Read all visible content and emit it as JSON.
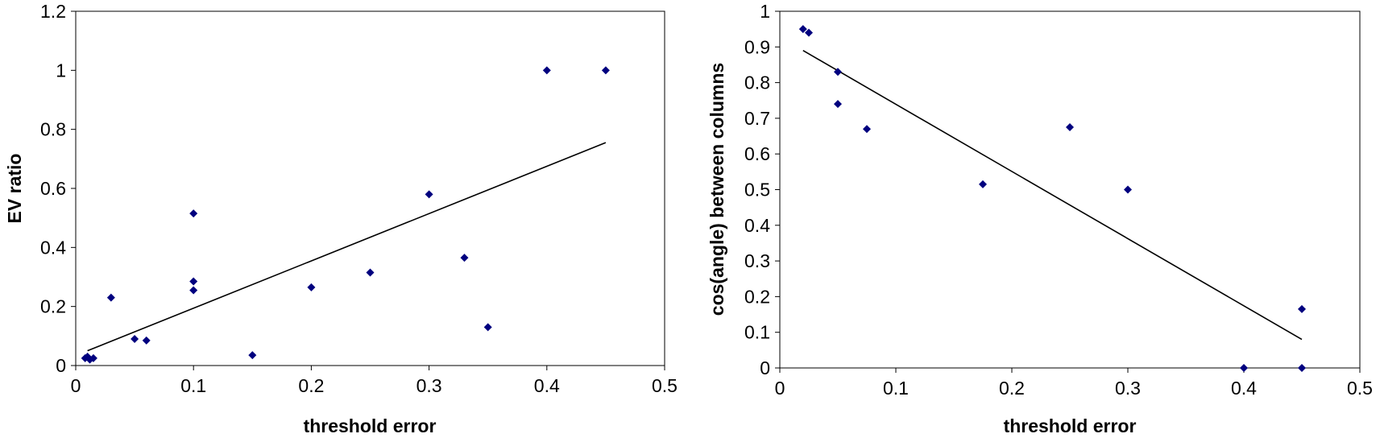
{
  "chart_data": [
    {
      "type": "scatter",
      "xlabel": "threshold error",
      "ylabel": "EV ratio",
      "xlim": [
        0,
        0.5
      ],
      "ylim": [
        0,
        1.2
      ],
      "xticks": [
        "0",
        "0.1",
        "0.2",
        "0.3",
        "0.4",
        "0.5"
      ],
      "yticks": [
        "0",
        "0.2",
        "0.4",
        "0.6",
        "0.8",
        "1",
        "1.2"
      ],
      "grid": false,
      "marker_color": "#00007f",
      "points": [
        {
          "x": 0.008,
          "y": 0.025
        },
        {
          "x": 0.01,
          "y": 0.03
        },
        {
          "x": 0.012,
          "y": 0.02
        },
        {
          "x": 0.015,
          "y": 0.025
        },
        {
          "x": 0.03,
          "y": 0.23
        },
        {
          "x": 0.05,
          "y": 0.09
        },
        {
          "x": 0.06,
          "y": 0.085
        },
        {
          "x": 0.1,
          "y": 0.515
        },
        {
          "x": 0.1,
          "y": 0.285
        },
        {
          "x": 0.1,
          "y": 0.255
        },
        {
          "x": 0.15,
          "y": 0.035
        },
        {
          "x": 0.2,
          "y": 0.265
        },
        {
          "x": 0.25,
          "y": 0.315
        },
        {
          "x": 0.3,
          "y": 0.58
        },
        {
          "x": 0.33,
          "y": 0.365
        },
        {
          "x": 0.35,
          "y": 0.13
        },
        {
          "x": 0.4,
          "y": 1.0
        },
        {
          "x": 0.45,
          "y": 1.0
        }
      ],
      "trendline": {
        "x": [
          0.01,
          0.45
        ],
        "y": [
          0.05,
          0.755
        ]
      }
    },
    {
      "type": "scatter",
      "xlabel": "threshold error",
      "ylabel": "cos(angle) between columns",
      "xlim": [
        0,
        0.5
      ],
      "ylim": [
        0,
        1
      ],
      "xticks": [
        "0",
        "0.1",
        "0.2",
        "0.3",
        "0.4",
        "0.5"
      ],
      "yticks": [
        "0",
        "0.1",
        "0.2",
        "0.3",
        "0.4",
        "0.5",
        "0.6",
        "0.7",
        "0.8",
        "0.9",
        "1"
      ],
      "grid": false,
      "marker_color": "#00007f",
      "points": [
        {
          "x": 0.02,
          "y": 0.95
        },
        {
          "x": 0.025,
          "y": 0.94
        },
        {
          "x": 0.05,
          "y": 0.83
        },
        {
          "x": 0.05,
          "y": 0.74
        },
        {
          "x": 0.075,
          "y": 0.67
        },
        {
          "x": 0.175,
          "y": 0.515
        },
        {
          "x": 0.25,
          "y": 0.675
        },
        {
          "x": 0.3,
          "y": 0.5
        },
        {
          "x": 0.4,
          "y": 0.0
        },
        {
          "x": 0.45,
          "y": 0.165
        },
        {
          "x": 0.45,
          "y": 0.0
        }
      ],
      "trendline": {
        "x": [
          0.02,
          0.45
        ],
        "y": [
          0.89,
          0.08
        ]
      }
    }
  ]
}
